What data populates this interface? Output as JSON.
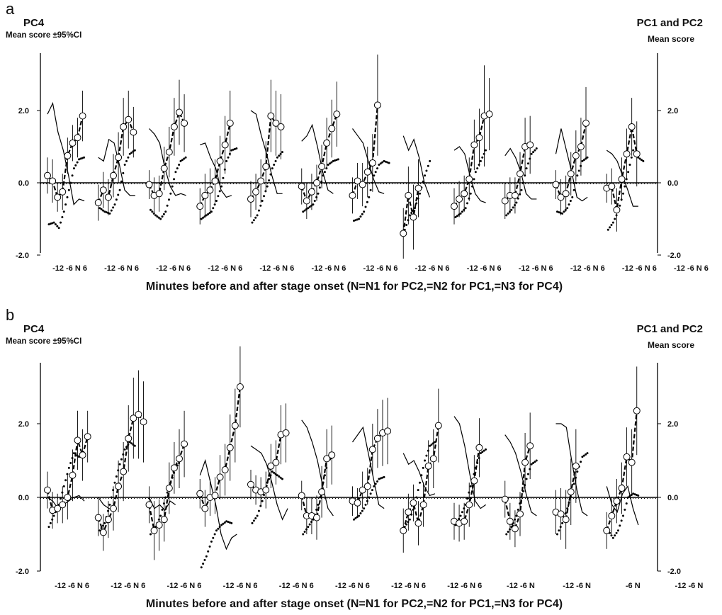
{
  "chart_data": [
    {
      "type": "line",
      "panel_label": "a",
      "left_title": "PC4",
      "left_subtitle": "Mean score ±95%CI",
      "right_title": "PC1 and PC2",
      "right_subtitle": "Mean score",
      "xlabel": "Minutes before and after stage onset (N=N1 for PC2,=N2 for PC1,=N3 for PC4)",
      "ylim": [
        -2.0,
        3.2
      ],
      "yticks": [
        "2.0",
        "0.0",
        "-2.0"
      ],
      "y2ticks": [
        "2.0",
        "0.0",
        "-2.0"
      ],
      "x_tick_groups": [
        "-12 -6 N 6",
        "-12 -6 N 6",
        "-12 -6 N 6",
        "-12 -6 N 6",
        "-12 -6 N 6",
        "-12 -6 N 6",
        "-12 -6 N 6",
        "-12 -6 N 6",
        "-12 -6 N 6",
        "-12 -6 N 6",
        "-12 -6 N 6",
        "-12 -6 N 6",
        "-12 -6 N 6"
      ],
      "segments": [
        {
          "pc4": [
            0.2,
            0.05,
            -0.4,
            -0.25,
            0.75,
            1.1,
            1.25,
            1.85
          ],
          "pc4_ci": [
            0.5,
            0.6,
            0.4,
            0.5,
            0.5,
            0.5,
            0.55,
            0.7
          ],
          "pc1": [
            -1.15,
            -1.1,
            -1.25,
            -0.8,
            -0.2,
            0.4,
            0.65,
            0.7
          ],
          "pc2": [
            1.9,
            2.2,
            1.4,
            0.9,
            0.2,
            -0.6,
            -0.45,
            -0.5
          ]
        },
        {
          "pc4": [
            -0.55,
            -0.2,
            -0.4,
            0.2,
            0.7,
            1.55,
            1.75,
            1.4
          ],
          "pc4_ci": [
            0.5,
            0.5,
            0.5,
            0.6,
            0.7,
            0.8,
            0.8,
            0.7
          ],
          "pc1": [
            -0.7,
            -0.8,
            -0.85,
            -0.6,
            -0.2,
            0.5,
            0.8,
            0.9
          ],
          "pc2": [
            0.7,
            0.6,
            1.2,
            1.1,
            0.5,
            -0.2,
            -0.35,
            -0.35
          ]
        },
        {
          "pc4": [
            -0.05,
            -0.35,
            -0.3,
            0.4,
            0.85,
            1.55,
            1.95,
            1.65
          ],
          "pc4_ci": [
            0.4,
            0.5,
            0.5,
            0.6,
            0.7,
            0.8,
            0.9,
            0.8
          ],
          "pc1": [
            -0.75,
            -0.9,
            -1.0,
            -0.8,
            -0.3,
            0.3,
            0.6,
            0.7
          ],
          "pc2": [
            1.5,
            1.35,
            1.1,
            0.4,
            -0.1,
            -0.35,
            -0.3,
            -0.35
          ]
        },
        {
          "pc4": [
            -0.65,
            -0.35,
            -0.2,
            0.05,
            0.6,
            1.05,
            1.65
          ],
          "pc4_ci": [
            0.5,
            0.6,
            0.6,
            0.6,
            0.7,
            0.8,
            0.9
          ],
          "pc1": [
            -1.0,
            -0.9,
            -0.8,
            -0.5,
            -0.1,
            0.6,
            0.9,
            0.95
          ],
          "pc2": [
            1.05,
            1.1,
            0.7,
            0.4,
            -0.2,
            -0.4,
            -0.35
          ]
        },
        {
          "pc4": [
            -0.45,
            -0.25,
            0.05,
            0.45,
            1.85,
            1.65,
            1.55
          ],
          "pc4_ci": [
            0.5,
            0.5,
            0.6,
            0.7,
            1.0,
            0.9,
            0.9
          ],
          "pc1": [
            -1.1,
            -0.9,
            -0.5,
            -0.1,
            0.4,
            0.7,
            0.85
          ],
          "pc2": [
            2.0,
            1.9,
            1.3,
            0.8,
            0.2,
            -0.3,
            -0.3
          ]
        },
        {
          "pc4": [
            -0.1,
            -0.5,
            -0.25,
            0.0,
            0.45,
            1.1,
            1.5,
            1.9
          ],
          "pc4_ci": [
            0.5,
            0.5,
            0.5,
            0.5,
            0.6,
            0.7,
            0.8,
            0.9
          ],
          "pc1": [
            -0.8,
            -0.7,
            -0.6,
            -0.3,
            0.2,
            0.5,
            0.6,
            0.65
          ],
          "pc2": [
            1.15,
            1.3,
            1.6,
            1.0,
            0.3,
            -0.2,
            -0.3
          ]
        },
        {
          "pc4": [
            -0.35,
            0.05,
            -0.05,
            0.3,
            0.55,
            2.15
          ],
          "pc4_ci": [
            0.5,
            0.5,
            0.6,
            0.7,
            0.8,
            1.4
          ],
          "pc1": [
            -1.05,
            -1.0,
            -0.8,
            -0.4,
            0.2,
            0.5,
            0.6,
            0.55
          ],
          "pc2": [
            1.5,
            1.3,
            1.1,
            0.6,
            0.1,
            -0.25,
            -0.3
          ]
        },
        {
          "pc4": [
            -1.4,
            -0.35,
            -0.95,
            -0.15
          ],
          "pc4_ci": [
            0.7,
            0.8,
            0.9,
            0.8
          ],
          "pc1": [
            -1.3,
            -0.9,
            -0.7,
            -0.3,
            0.2,
            0.6
          ],
          "pc2": [
            1.3,
            0.9,
            1.2,
            0.7,
            0.0,
            -0.4
          ]
        },
        {
          "pc4": [
            -0.65,
            -0.45,
            -0.3,
            0.1,
            1.05,
            1.25,
            1.85,
            1.9
          ],
          "pc4_ci": [
            0.5,
            0.5,
            0.5,
            0.6,
            0.7,
            0.8,
            1.4,
            1.0
          ],
          "pc1": [
            -0.95,
            -0.85,
            -0.7,
            -0.3,
            0.3,
            0.6,
            0.9
          ],
          "pc2": [
            0.9,
            1.0,
            0.8,
            0.2,
            -0.3,
            -0.5,
            -0.55
          ]
        },
        {
          "pc4": [
            -0.5,
            -0.35,
            -0.35,
            0.25,
            1.0,
            1.05
          ],
          "pc4_ci": [
            0.5,
            0.5,
            0.5,
            0.6,
            0.8,
            0.8
          ],
          "pc1": [
            -0.9,
            -0.75,
            -0.55,
            -0.2,
            0.4,
            0.8,
            0.95
          ],
          "pc2": [
            0.75,
            0.95,
            0.7,
            0.3,
            -0.3,
            -0.45,
            -0.45
          ]
        },
        {
          "pc4": [
            -0.05,
            -0.4,
            -0.3,
            0.25,
            0.75,
            1.0,
            1.65
          ],
          "pc4_ci": [
            0.4,
            0.5,
            0.5,
            0.6,
            0.7,
            0.8,
            1.0
          ],
          "pc1": [
            -0.8,
            -0.85,
            -0.7,
            -0.4,
            0.2,
            0.6,
            0.7
          ],
          "pc2": [
            0.8,
            1.5,
            0.9,
            0.3,
            -0.4,
            -0.5,
            -0.4
          ]
        },
        {
          "pc4": [
            -0.15,
            -0.1,
            -0.75,
            0.1,
            0.8,
            1.55,
            0.8
          ],
          "pc4_ci": [
            0.4,
            0.5,
            0.6,
            0.6,
            0.7,
            0.8,
            0.9
          ],
          "pc1": [
            -1.3,
            -1.1,
            -0.8,
            -0.3,
            0.3,
            0.9,
            0.7,
            0.6
          ],
          "pc2": [
            0.9,
            0.8,
            0.6,
            0.2,
            -0.2,
            -0.65,
            -0.65
          ]
        }
      ]
    },
    {
      "type": "line",
      "panel_label": "b",
      "left_title": "PC4",
      "left_subtitle": "Mean score ±95%CI",
      "right_title": "PC1 and PC2",
      "right_subtitle": "Mean score",
      "xlabel": "Minutes before and after stage onset (N=N1 for PC2,=N2 for PC1,=N3 for PC4)",
      "ylim": [
        -2.0,
        3.4
      ],
      "yticks": [
        "2.0",
        "0.0",
        "-2.0"
      ],
      "y2ticks": [
        "2.0",
        "0.0",
        "-2.0"
      ],
      "x_tick_groups": [
        "-12 -6 N 6",
        "-12 -6 N 6",
        "-12 -6 N 6",
        "-12 -6 N 6",
        "-12 -6 N 6",
        "-12 -6 N 6",
        "-12 -6 N 6",
        "-12 -6 N 6",
        "-12 -6 N",
        "-12 -6 N",
        "-6 N",
        "-12 -6 N"
      ],
      "segments": [
        {
          "pc4": [
            0.2,
            -0.35,
            -0.3,
            -0.2,
            0.0,
            0.6,
            1.55,
            1.15,
            1.65
          ],
          "pc4_ci": [
            0.5,
            0.5,
            0.4,
            0.5,
            0.6,
            0.7,
            0.8,
            0.7,
            0.7
          ],
          "pc1": [
            -0.8,
            -0.5,
            -0.2,
            0.3,
            0.8,
            1.2,
            1.1,
            1.2
          ],
          "pc2": [
            0.0,
            -0.1,
            -0.3,
            -0.2,
            -0.1,
            0.0,
            0.05,
            -0.1
          ]
        },
        {
          "pc4": [
            -0.55,
            -0.95,
            -0.6,
            -0.3,
            0.3,
            0.7,
            1.6,
            2.15,
            2.25,
            2.05
          ],
          "pc4_ci": [
            0.5,
            0.5,
            0.5,
            0.6,
            0.7,
            0.8,
            0.9,
            1.1,
            1.2,
            1.1
          ],
          "pc1": [
            -0.9,
            -0.7,
            -0.2,
            0.4,
            0.9,
            1.3,
            1.5,
            1.4
          ],
          "pc2": [
            0.0,
            -0.2,
            -0.3,
            -0.35
          ]
        },
        {
          "pc4": [
            -0.2,
            -0.9,
            -0.75,
            -0.6,
            0.25,
            0.8,
            1.05,
            1.45
          ],
          "pc4_ci": [
            0.5,
            0.8,
            0.7,
            0.6,
            0.7,
            0.7,
            0.8,
            0.9
          ],
          "pc1": [
            -1.0,
            -0.8,
            -0.5,
            0.0,
            0.4,
            0.8,
            1.0
          ],
          "pc2": [
            0.0,
            -0.3,
            -0.2,
            -0.35,
            -0.1,
            -0.2
          ]
        },
        {
          "pc4": [
            0.1,
            -0.3,
            0.0,
            0.05,
            0.55,
            0.75,
            1.35,
            1.95,
            3.0
          ],
          "pc4_ci": [
            0.4,
            0.5,
            0.5,
            0.5,
            0.6,
            0.7,
            0.9,
            1.0,
            1.1
          ],
          "pc1": [
            -1.9,
            -1.6,
            -1.2,
            -0.9,
            -0.75,
            -0.65,
            -0.7
          ],
          "pc2": [
            0.6,
            1.0,
            0.4,
            -0.2,
            -1.0,
            -1.4,
            -1.1,
            -1.0
          ]
        },
        {
          "pc4": [
            0.35,
            0.2,
            0.15,
            0.2,
            0.85,
            0.95,
            1.7,
            1.75
          ],
          "pc4_ci": [
            0.4,
            0.4,
            0.4,
            0.5,
            0.6,
            0.6,
            0.8,
            0.8
          ],
          "pc1": [
            -0.7,
            -0.5,
            -0.1,
            0.4,
            0.7,
            0.6,
            0.5
          ],
          "pc2": [
            1.4,
            1.3,
            1.2,
            0.9,
            0.4,
            -0.2,
            -0.6,
            -0.3
          ]
        },
        {
          "pc4": [
            0.05,
            -0.5,
            -0.5,
            -0.55,
            0.15,
            1.05,
            1.15
          ],
          "pc4_ci": [
            0.4,
            0.5,
            0.5,
            0.6,
            0.7,
            0.8,
            0.8
          ],
          "pc1": [
            -1.0,
            -0.8,
            -0.6,
            -0.2,
            0.4,
            1.0,
            1.1
          ],
          "pc2": [
            2.1,
            1.9,
            1.5,
            1.0,
            0.3,
            -0.3,
            -0.5
          ]
        },
        {
          "pc4": [
            -0.1,
            -0.15,
            0.2,
            0.3,
            1.3,
            1.6,
            1.75,
            1.8
          ],
          "pc4_ci": [
            0.4,
            0.4,
            0.5,
            0.5,
            0.7,
            0.8,
            0.9,
            0.9
          ],
          "pc1": [
            -0.6,
            -0.5,
            -0.3,
            0.0,
            0.3,
            0.5,
            0.55
          ],
          "pc2": [
            1.5,
            1.7,
            1.9,
            1.2,
            0.5,
            -0.2,
            -0.3
          ]
        },
        {
          "pc4": [
            -0.9,
            -0.4,
            -0.15,
            -0.7,
            -0.2,
            0.85,
            1.05,
            1.95
          ],
          "pc4_ci": [
            0.6,
            0.5,
            0.5,
            0.6,
            0.6,
            0.7,
            0.8,
            1.0
          ],
          "pc1": [
            -0.8,
            -0.6,
            -0.2,
            0.4,
            1.0,
            1.4,
            1.5
          ],
          "pc2": [
            1.2,
            0.9,
            1.0,
            0.7,
            0.3,
            0.05,
            0.1
          ]
        },
        {
          "pc4": [
            -0.65,
            -0.7,
            -0.65,
            -0.2,
            0.45,
            1.35
          ],
          "pc4_ci": [
            0.5,
            0.5,
            0.5,
            0.6,
            0.7,
            0.8
          ],
          "pc1": [
            -0.75,
            -0.5,
            -0.2,
            0.3,
            0.8,
            1.2,
            1.3
          ],
          "pc2": [
            2.2,
            2.0,
            1.4,
            0.6,
            -0.1,
            -0.3,
            -0.2
          ]
        },
        {
          "pc4": [
            -0.05,
            -0.65,
            -0.85,
            -0.45,
            0.95,
            1.4
          ],
          "pc4_ci": [
            0.5,
            0.5,
            0.5,
            0.6,
            0.8,
            0.9
          ],
          "pc1": [
            -1.0,
            -0.8,
            -0.5,
            0.0,
            0.5,
            0.9,
            1.0
          ],
          "pc2": [
            1.7,
            1.5,
            1.2,
            0.7,
            0.1,
            -0.4,
            -0.5
          ]
        },
        {
          "pc4": [
            -0.4,
            -0.45,
            -0.6,
            0.15,
            0.85
          ],
          "pc4_ci": [
            0.6,
            0.7,
            0.8,
            0.9,
            1.0
          ],
          "pc1": [
            -1.0,
            -0.7,
            -0.3,
            0.2,
            0.7,
            1.1,
            1.2
          ],
          "pc2": [
            2.0,
            2.0,
            1.9,
            1.0,
            0.2,
            -0.4,
            -0.5
          ]
        },
        {
          "pc4": [
            -0.9,
            -0.5,
            -0.1,
            0.25,
            1.1,
            0.95,
            2.35
          ],
          "pc4_ci": [
            0.5,
            0.5,
            0.6,
            0.7,
            0.8,
            0.9,
            1.2
          ],
          "pc1": [
            -0.9,
            -1.1,
            -0.9,
            -0.5,
            0.0,
            0.1,
            0.05
          ],
          "pc2": [
            0.3,
            -0.2,
            -0.4,
            0.1,
            0.3,
            -0.3,
            -0.75
          ]
        }
      ]
    }
  ]
}
